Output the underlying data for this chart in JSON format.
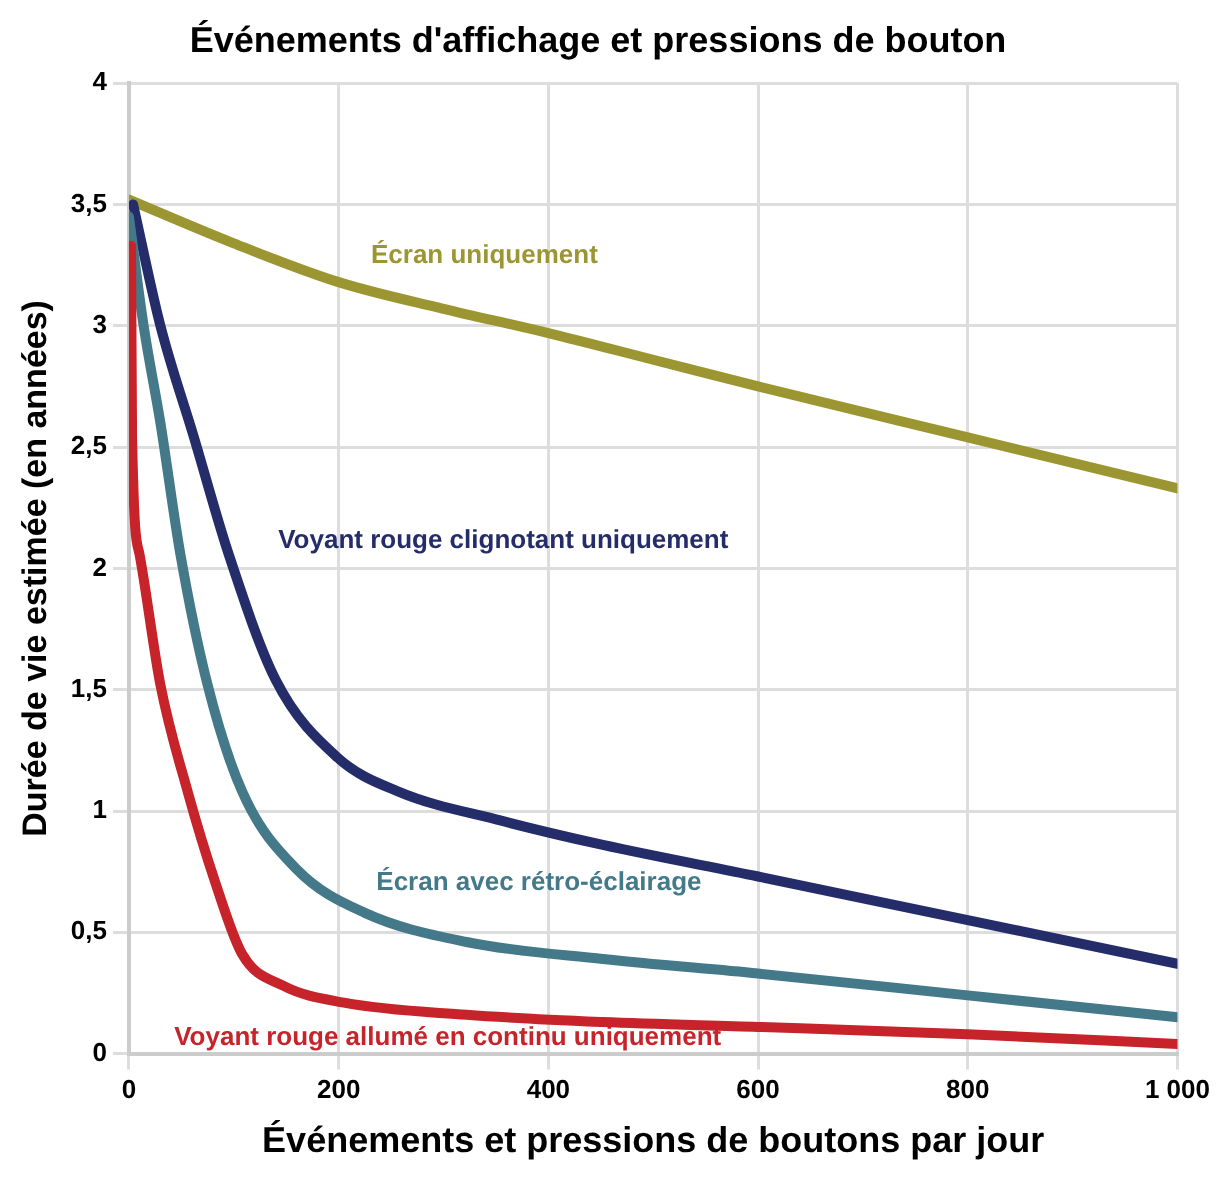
{
  "chart_data": {
    "type": "line",
    "title": "Événements d'affichage et pressions de bouton",
    "xlabel": "Événements et pressions de boutons par jour",
    "ylabel": "Durée de vie estimée (en années)",
    "xlim": [
      0,
      1000
    ],
    "xticks": [
      0,
      200,
      400,
      600,
      800,
      {
        "value": 1000,
        "label": "1 000"
      }
    ],
    "ylim": [
      0,
      4
    ],
    "yticks": [
      0,
      {
        "value": 0.5,
        "label": "0,5"
      },
      1,
      {
        "value": 1.5,
        "label": "1,5"
      },
      2,
      {
        "value": 2.5,
        "label": "2,5"
      },
      3,
      {
        "value": 3.5,
        "label": "3,5"
      },
      4
    ],
    "grid": true,
    "legend": false,
    "marker": "none",
    "line_style": "solid",
    "series": [
      {
        "name": "Écran uniquement",
        "color": "#9c9632",
        "x": [
          0,
          100,
          200,
          300,
          400,
          500,
          600,
          800,
          1000
        ],
        "values": [
          3.52,
          3.34,
          3.18,
          3.07,
          2.97,
          2.86,
          2.75,
          2.54,
          2.33
        ]
      },
      {
        "name": "Voyant rouge clignotant uniquement",
        "color": "#242d69",
        "x": [
          4,
          30,
          62,
          95,
          140,
          199,
          257,
          355,
          452,
          600,
          800,
          1000
        ],
        "values": [
          3.5,
          3.0,
          2.54,
          2.06,
          1.54,
          1.22,
          1.08,
          0.96,
          0.86,
          0.73,
          0.55,
          0.37
        ]
      },
      {
        "name": "Écran avec rétro-éclairage",
        "color": "#44798a",
        "x": [
          0,
          14,
          30,
          49,
          75,
          108,
          160,
          225,
          322,
          452,
          600,
          800,
          1000
        ],
        "values": [
          3.45,
          3.0,
          2.6,
          2.06,
          1.52,
          1.08,
          0.76,
          0.58,
          0.46,
          0.39,
          0.33,
          0.24,
          0.15
        ]
      },
      {
        "name": "Voyant rouge allumé en continu uniquement",
        "color": "#c6242a",
        "x": [
          2,
          3,
          10,
          30,
          56,
          82,
          108,
          147,
          205,
          322,
          452,
          600,
          800,
          1000
        ],
        "values": [
          3.33,
          2.54,
          2.06,
          1.52,
          1.08,
          0.71,
          0.41,
          0.28,
          0.21,
          0.16,
          0.13,
          0.11,
          0.08,
          0.04
        ]
      }
    ]
  }
}
